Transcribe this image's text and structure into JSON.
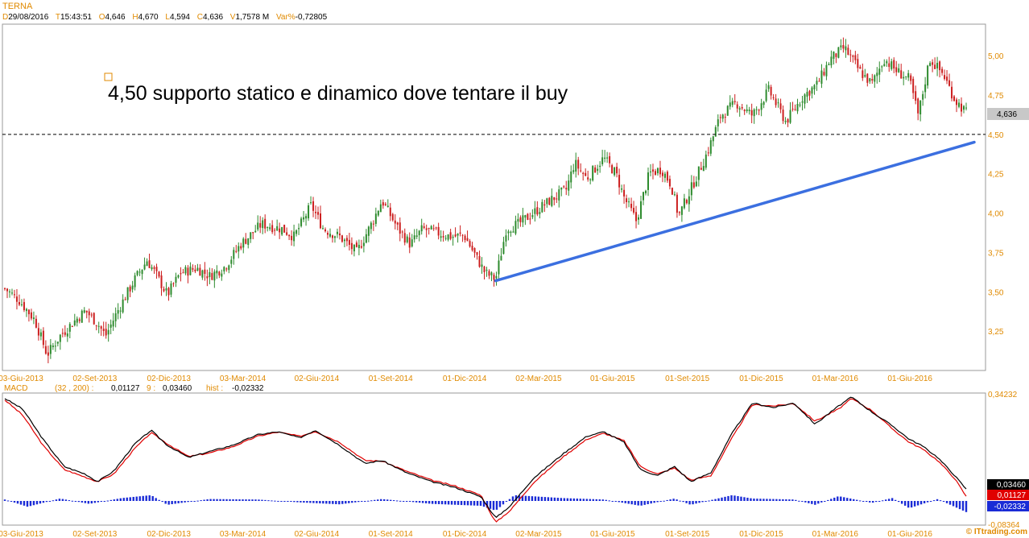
{
  "header": {
    "symbol": "TERNA",
    "items": [
      {
        "key": "D",
        "value": "29/08/2016"
      },
      {
        "key": "T",
        "value": "15:43:51"
      },
      {
        "key": "O",
        "value": "4,646"
      },
      {
        "key": "H",
        "value": "4,670"
      },
      {
        "key": "L",
        "value": "4,594"
      },
      {
        "key": "C",
        "value": "4,636"
      },
      {
        "key": "V",
        "value": "1,7578 M"
      },
      {
        "key": "Var%",
        "value": "-0,72805"
      }
    ]
  },
  "chart_data": [
    {
      "type": "candlestick",
      "title": "TERNA",
      "annotation": "4,50 supporto statico e dinamico dove tentare il buy",
      "last_price_label": "4,636",
      "support_level": 4.5,
      "trendline": [
        {
          "x": "2015-01-28",
          "y": 3.57
        },
        {
          "x": "2016-08-29",
          "y": 4.45
        }
      ],
      "ylim": [
        3.0,
        5.2
      ],
      "y_ticks": [
        "3,25",
        "3,50",
        "3,75",
        "4,00",
        "4,25",
        "4,50",
        "4,75",
        "5,00"
      ],
      "x_tick_labels": [
        "03-Giu-2013",
        "02-Set-2013",
        "02-Dic-2013",
        "03-Mar-2014",
        "02-Giu-2014",
        "01-Set-2014",
        "01-Dic-2014",
        "02-Mar-2015",
        "01-Giu-2015",
        "01-Set-2015",
        "01-Dic-2015",
        "01-Mar-2016",
        "01-Giu-2016"
      ],
      "price_path": [
        [
          "2013-06-03",
          3.52
        ],
        [
          "2013-06-20",
          3.45
        ],
        [
          "2013-07-10",
          3.32
        ],
        [
          "2013-07-25",
          3.1
        ],
        [
          "2013-08-10",
          3.22
        ],
        [
          "2013-08-25",
          3.3
        ],
        [
          "2013-09-10",
          3.38
        ],
        [
          "2013-09-25",
          3.3
        ],
        [
          "2013-10-05",
          3.22
        ],
        [
          "2013-10-20",
          3.38
        ],
        [
          "2013-11-10",
          3.58
        ],
        [
          "2013-11-25",
          3.7
        ],
        [
          "2013-12-05",
          3.62
        ],
        [
          "2013-12-20",
          3.48
        ],
        [
          "2014-01-05",
          3.62
        ],
        [
          "2014-01-25",
          3.65
        ],
        [
          "2014-02-10",
          3.6
        ],
        [
          "2014-03-01",
          3.66
        ],
        [
          "2014-03-20",
          3.8
        ],
        [
          "2014-04-15",
          3.93
        ],
        [
          "2014-05-10",
          3.9
        ],
        [
          "2014-05-25",
          3.85
        ],
        [
          "2014-06-15",
          4.05
        ],
        [
          "2014-06-30",
          3.9
        ],
        [
          "2014-07-20",
          3.85
        ],
        [
          "2014-08-10",
          3.75
        ],
        [
          "2014-08-30",
          3.95
        ],
        [
          "2014-09-10",
          4.08
        ],
        [
          "2014-09-30",
          3.9
        ],
        [
          "2014-10-15",
          3.8
        ],
        [
          "2014-10-30",
          3.9
        ],
        [
          "2014-11-20",
          3.87
        ],
        [
          "2014-12-05",
          3.85
        ],
        [
          "2014-12-20",
          3.86
        ],
        [
          "2015-01-15",
          3.62
        ],
        [
          "2015-01-28",
          3.58
        ],
        [
          "2015-02-10",
          3.9
        ],
        [
          "2015-02-25",
          3.93
        ],
        [
          "2015-03-15",
          4.0
        ],
        [
          "2015-04-05",
          4.08
        ],
        [
          "2015-04-25",
          4.15
        ],
        [
          "2015-05-05",
          4.32
        ],
        [
          "2015-05-20",
          4.22
        ],
        [
          "2015-06-10",
          4.35
        ],
        [
          "2015-06-25",
          4.25
        ],
        [
          "2015-07-05",
          4.1
        ],
        [
          "2015-07-20",
          3.95
        ],
        [
          "2015-08-05",
          4.25
        ],
        [
          "2015-08-20",
          4.28
        ],
        [
          "2015-09-01",
          4.18
        ],
        [
          "2015-09-10",
          3.98
        ],
        [
          "2015-09-25",
          4.15
        ],
        [
          "2015-10-15",
          4.38
        ],
        [
          "2015-11-01",
          4.62
        ],
        [
          "2015-11-20",
          4.7
        ],
        [
          "2015-12-10",
          4.62
        ],
        [
          "2015-12-30",
          4.78
        ],
        [
          "2016-01-20",
          4.58
        ],
        [
          "2016-02-10",
          4.74
        ],
        [
          "2016-02-28",
          4.82
        ],
        [
          "2016-03-15",
          4.98
        ],
        [
          "2016-04-01",
          5.05
        ],
        [
          "2016-04-20",
          4.9
        ],
        [
          "2016-05-05",
          4.82
        ],
        [
          "2016-05-20",
          4.98
        ],
        [
          "2016-06-05",
          4.9
        ],
        [
          "2016-06-20",
          4.85
        ],
        [
          "2016-07-01",
          4.62
        ],
        [
          "2016-07-15",
          4.98
        ],
        [
          "2016-08-01",
          4.88
        ],
        [
          "2016-08-15",
          4.72
        ],
        [
          "2016-08-29",
          4.64
        ]
      ]
    },
    {
      "type": "line",
      "title": "MACD",
      "legend": [
        {
          "label": "MACD",
          "value": "(32 , 200) :",
          "color": "#e08a00"
        },
        {
          "label": "0,01127",
          "color": "#000000"
        },
        {
          "label": "9 :",
          "color": "#e08a00"
        },
        {
          "label": "0,03460",
          "color": "#000000"
        },
        {
          "label": "hist :",
          "color": "#e08a00"
        },
        {
          "label": "-0,02332",
          "color": "#000000"
        }
      ],
      "y_labels": {
        "top": "0,34232",
        "bottom": "-0,08364"
      },
      "ylim": [
        -0.08364,
        0.34232
      ],
      "value_badges": [
        {
          "text": "0,03460",
          "bg": "#000000"
        },
        {
          "text": "0,01127",
          "bg": "#e00000"
        },
        {
          "text": "-0,02332",
          "bg": "#1a2bd6"
        }
      ],
      "series": [
        {
          "color": "#000000",
          "values": [
            [
              "2013-06-03",
              0.335
            ],
            [
              "2013-06-25",
              0.3
            ],
            [
              "2013-07-20",
              0.2
            ],
            [
              "2013-08-15",
              0.11
            ],
            [
              "2013-09-10",
              0.085
            ],
            [
              "2013-09-25",
              0.06
            ],
            [
              "2013-10-15",
              0.095
            ],
            [
              "2013-11-10",
              0.185
            ],
            [
              "2013-11-30",
              0.23
            ],
            [
              "2013-12-20",
              0.18
            ],
            [
              "2014-01-15",
              0.14
            ],
            [
              "2014-02-10",
              0.16
            ],
            [
              "2014-03-10",
              0.18
            ],
            [
              "2014-04-10",
              0.215
            ],
            [
              "2014-05-05",
              0.225
            ],
            [
              "2014-06-01",
              0.205
            ],
            [
              "2014-06-20",
              0.23
            ],
            [
              "2014-07-20",
              0.18
            ],
            [
              "2014-08-20",
              0.12
            ],
            [
              "2014-09-10",
              0.13
            ],
            [
              "2014-10-10",
              0.09
            ],
            [
              "2014-11-10",
              0.06
            ],
            [
              "2014-12-10",
              0.04
            ],
            [
              "2015-01-10",
              0.01
            ],
            [
              "2015-01-28",
              -0.06
            ],
            [
              "2015-02-15",
              -0.02
            ],
            [
              "2015-03-15",
              0.07
            ],
            [
              "2015-04-20",
              0.15
            ],
            [
              "2015-05-20",
              0.21
            ],
            [
              "2015-06-10",
              0.225
            ],
            [
              "2015-07-05",
              0.19
            ],
            [
              "2015-07-25",
              0.1
            ],
            [
              "2015-08-15",
              0.08
            ],
            [
              "2015-09-05",
              0.11
            ],
            [
              "2015-09-25",
              0.06
            ],
            [
              "2015-10-20",
              0.09
            ],
            [
              "2015-11-15",
              0.22
            ],
            [
              "2015-12-10",
              0.32
            ],
            [
              "2016-01-05",
              0.305
            ],
            [
              "2016-01-30",
              0.32
            ],
            [
              "2016-02-25",
              0.25
            ],
            [
              "2016-03-25",
              0.31
            ],
            [
              "2016-04-10",
              0.34
            ],
            [
              "2016-05-05",
              0.29
            ],
            [
              "2016-05-30",
              0.245
            ],
            [
              "2016-06-20",
              0.2
            ],
            [
              "2016-07-05",
              0.18
            ],
            [
              "2016-07-25",
              0.14
            ],
            [
              "2016-08-15",
              0.08
            ],
            [
              "2016-08-29",
              0.035
            ]
          ]
        },
        {
          "color": "#e00000",
          "values": [
            [
              "2013-06-03",
              0.33
            ],
            [
              "2013-06-25",
              0.28
            ],
            [
              "2013-07-20",
              0.18
            ],
            [
              "2013-08-15",
              0.1
            ],
            [
              "2013-09-10",
              0.075
            ],
            [
              "2013-09-25",
              0.06
            ],
            [
              "2013-10-15",
              0.085
            ],
            [
              "2013-11-10",
              0.17
            ],
            [
              "2013-11-30",
              0.222
            ],
            [
              "2013-12-20",
              0.185
            ],
            [
              "2014-01-15",
              0.143
            ],
            [
              "2014-02-10",
              0.155
            ],
            [
              "2014-03-10",
              0.175
            ],
            [
              "2014-04-10",
              0.21
            ],
            [
              "2014-05-05",
              0.224
            ],
            [
              "2014-06-01",
              0.21
            ],
            [
              "2014-06-20",
              0.226
            ],
            [
              "2014-07-20",
              0.19
            ],
            [
              "2014-08-20",
              0.13
            ],
            [
              "2014-09-10",
              0.128
            ],
            [
              "2014-10-10",
              0.095
            ],
            [
              "2014-11-10",
              0.065
            ],
            [
              "2014-12-10",
              0.045
            ],
            [
              "2015-01-10",
              0.015
            ],
            [
              "2015-01-28",
              -0.075
            ],
            [
              "2015-02-15",
              -0.035
            ],
            [
              "2015-03-15",
              0.055
            ],
            [
              "2015-04-20",
              0.14
            ],
            [
              "2015-05-20",
              0.2
            ],
            [
              "2015-06-10",
              0.22
            ],
            [
              "2015-07-05",
              0.195
            ],
            [
              "2015-07-25",
              0.11
            ],
            [
              "2015-08-15",
              0.085
            ],
            [
              "2015-09-05",
              0.105
            ],
            [
              "2015-09-25",
              0.065
            ],
            [
              "2015-10-20",
              0.08
            ],
            [
              "2015-11-15",
              0.205
            ],
            [
              "2015-12-10",
              0.315
            ],
            [
              "2016-01-05",
              0.31
            ],
            [
              "2016-01-30",
              0.318
            ],
            [
              "2016-02-25",
              0.26
            ],
            [
              "2016-03-25",
              0.3
            ],
            [
              "2016-04-10",
              0.335
            ],
            [
              "2016-05-05",
              0.295
            ],
            [
              "2016-05-30",
              0.235
            ],
            [
              "2016-06-20",
              0.19
            ],
            [
              "2016-07-05",
              0.17
            ],
            [
              "2016-07-25",
              0.13
            ],
            [
              "2016-08-15",
              0.07
            ],
            [
              "2016-08-29",
              0.011
            ]
          ]
        }
      ],
      "hist_envelope": [
        [
          "2013-06-03",
          0.003
        ],
        [
          "2013-07-01",
          -0.012
        ],
        [
          "2013-08-10",
          0.005
        ],
        [
          "2013-09-15",
          -0.006
        ],
        [
          "2013-10-25",
          0.006
        ],
        [
          "2013-11-30",
          0.012
        ],
        [
          "2013-12-20",
          -0.008
        ],
        [
          "2014-02-10",
          0.004
        ],
        [
          "2014-04-10",
          0.003
        ],
        [
          "2014-06-01",
          -0.003
        ],
        [
          "2014-07-20",
          -0.007
        ],
        [
          "2014-09-10",
          0.004
        ],
        [
          "2014-11-10",
          -0.006
        ],
        [
          "2015-01-10",
          -0.01
        ],
        [
          "2015-01-28",
          -0.02
        ],
        [
          "2015-02-20",
          0.012
        ],
        [
          "2015-04-20",
          0.006
        ],
        [
          "2015-06-10",
          0.003
        ],
        [
          "2015-07-25",
          -0.01
        ],
        [
          "2015-09-05",
          0.005
        ],
        [
          "2015-09-25",
          -0.008
        ],
        [
          "2015-11-15",
          0.012
        ],
        [
          "2015-12-10",
          0.005
        ],
        [
          "2016-01-30",
          0.003
        ],
        [
          "2016-02-25",
          -0.008
        ],
        [
          "2016-03-25",
          0.01
        ],
        [
          "2016-05-05",
          -0.004
        ],
        [
          "2016-05-30",
          0.006
        ],
        [
          "2016-06-20",
          -0.015
        ],
        [
          "2016-07-25",
          0.004
        ],
        [
          "2016-08-29",
          -0.023
        ]
      ]
    }
  ],
  "footer": {
    "watermark": "© ITtrading.com"
  }
}
